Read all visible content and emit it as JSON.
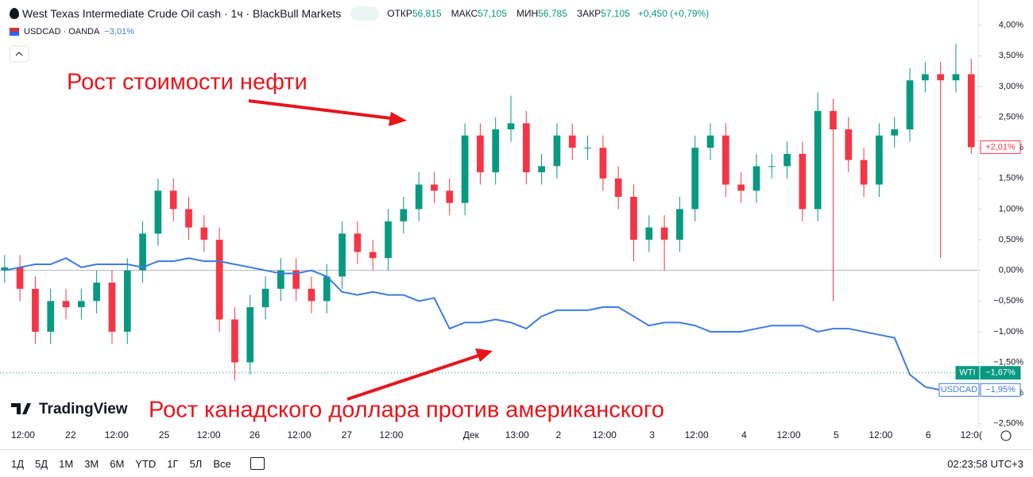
{
  "chart_data": {
    "type": "candlestick",
    "title": "West Texas Intermediate Crude Oil cash · 1ч · BlackBull Markets",
    "stats": [
      {
        "label": "ОТКР",
        "value": "56,815"
      },
      {
        "label": "МАКС",
        "value": "57,105"
      },
      {
        "label": "МИН",
        "value": "56,785"
      },
      {
        "label": "ЗАКР",
        "value": "57,105"
      }
    ],
    "change": "+0,450 (+0,79%)",
    "compare_symbol": "USDCAD · OANDA",
    "compare_change": "−3,01%",
    "annotations": [
      "Рост стоимости нефти",
      "Рост канадского доллара против американского"
    ],
    "logo": "TradingView",
    "up_color": "#089981",
    "down_color": "#f23645",
    "open": [
      0.0,
      0.05,
      -0.3,
      -1.0,
      -0.5,
      -0.6,
      -0.5,
      -0.2,
      -1.0,
      0.0,
      0.6,
      1.3,
      1.0,
      0.7,
      0.5,
      -0.8,
      -1.5,
      -0.6,
      -0.3,
      0.0,
      -0.3,
      -0.5,
      -0.1,
      0.6,
      0.3,
      0.2,
      0.8,
      1.0,
      1.4,
      1.3,
      1.1,
      2.2,
      1.6,
      2.3,
      2.4,
      1.6,
      1.7,
      2.2,
      2.0,
      2.0,
      1.5,
      1.2,
      0.5,
      0.7,
      0.5,
      1.0,
      2.0,
      2.2,
      1.4,
      1.3,
      1.7,
      1.7,
      1.9,
      1.0,
      2.6,
      2.3,
      1.8,
      1.4,
      2.2,
      2.3,
      3.1,
      3.2,
      3.1,
      3.2
    ],
    "high": [
      0.25,
      0.25,
      -0.1,
      -0.3,
      -0.3,
      -0.3,
      0.0,
      0.0,
      0.2,
      0.8,
      1.5,
      1.5,
      1.2,
      0.9,
      0.7,
      -0.6,
      -0.4,
      -0.1,
      0.2,
      0.2,
      -0.1,
      0.1,
      0.8,
      0.8,
      0.5,
      1.0,
      1.2,
      1.6,
      1.6,
      1.5,
      2.4,
      2.4,
      2.5,
      2.85,
      2.6,
      1.9,
      2.4,
      2.4,
      2.2,
      2.2,
      1.7,
      1.4,
      0.9,
      0.9,
      1.2,
      2.2,
      2.4,
      2.4,
      1.6,
      1.9,
      1.9,
      2.1,
      2.1,
      2.9,
      2.8,
      2.5,
      2.0,
      2.4,
      2.5,
      3.3,
      3.4,
      3.4,
      3.7,
      3.45
    ],
    "low": [
      -0.2,
      -0.5,
      -1.2,
      -1.2,
      -0.8,
      -0.8,
      -0.7,
      -1.2,
      -1.2,
      -0.2,
      0.4,
      0.8,
      0.5,
      0.3,
      -1.0,
      -1.8,
      -1.7,
      -0.8,
      -0.5,
      -0.5,
      -0.7,
      -0.7,
      -0.3,
      0.1,
      0.0,
      0.0,
      0.6,
      0.8,
      1.1,
      0.9,
      0.9,
      1.4,
      1.4,
      2.1,
      1.4,
      1.4,
      1.5,
      1.8,
      1.8,
      1.3,
      1.0,
      0.15,
      0.3,
      0.0,
      0.3,
      0.8,
      1.8,
      1.2,
      1.1,
      1.1,
      1.5,
      1.5,
      0.8,
      0.8,
      -0.5,
      1.6,
      1.2,
      1.2,
      2.0,
      2.1,
      2.9,
      0.2,
      2.9,
      1.9
    ],
    "close": [
      0.05,
      -0.3,
      -1.0,
      -0.5,
      -0.6,
      -0.5,
      -0.2,
      -1.0,
      0.0,
      0.6,
      1.3,
      1.0,
      0.7,
      0.5,
      -0.8,
      -1.5,
      -0.6,
      -0.3,
      0.0,
      -0.3,
      -0.5,
      -0.1,
      0.6,
      0.3,
      0.2,
      0.8,
      1.0,
      1.4,
      1.3,
      1.1,
      2.2,
      1.6,
      2.3,
      2.4,
      1.6,
      1.7,
      2.2,
      2.0,
      2.0,
      1.5,
      1.2,
      0.5,
      0.7,
      0.5,
      1.0,
      2.0,
      2.2,
      1.4,
      1.3,
      1.7,
      1.7,
      1.9,
      1.0,
      2.6,
      2.3,
      1.8,
      1.4,
      2.2,
      2.3,
      3.1,
      3.2,
      3.1,
      3.2,
      2.01
    ],
    "series": [
      {
        "name": "USDCAD",
        "color": "#3d7be0",
        "values": [
          0.0,
          0.05,
          0.1,
          0.1,
          0.2,
          0.05,
          0.1,
          0.1,
          0.1,
          0.05,
          0.15,
          0.15,
          0.2,
          0.15,
          0.15,
          0.1,
          0.05,
          0.0,
          -0.05,
          -0.05,
          0.0,
          -0.1,
          -0.35,
          -0.4,
          -0.35,
          -0.4,
          -0.4,
          -0.5,
          -0.45,
          -0.95,
          -0.85,
          -0.85,
          -0.8,
          -0.85,
          -0.95,
          -0.75,
          -0.65,
          -0.65,
          -0.65,
          -0.6,
          -0.6,
          -0.75,
          -0.9,
          -0.85,
          -0.85,
          -0.9,
          -1.0,
          -1.0,
          -1.0,
          -0.95,
          -0.9,
          -0.9,
          -0.9,
          -1.0,
          -0.95,
          -0.95,
          -1.0,
          -1.05,
          -1.1,
          -1.7,
          -1.9,
          -1.95,
          -1.95,
          -1.95
        ]
      }
    ],
    "price_labels": [
      {
        "text": "+2,01%",
        "value": 2.01,
        "color": "#f23645",
        "style": "outline"
      },
      {
        "name": "WTI",
        "text": "−1,67%",
        "value": -1.67,
        "color": "#089981",
        "style": "filled"
      },
      {
        "name": "USDCAD",
        "text": "−1,95%",
        "value": -1.95,
        "color": "#3d7be0",
        "style": "outline"
      }
    ],
    "xlim": [
      -0.3,
      63.4
    ],
    "xticks": [
      {
        "value": 1.2,
        "label": "12:00"
      },
      {
        "value": 4.3,
        "label": "22"
      },
      {
        "value": 7.3,
        "label": "12:00"
      },
      {
        "value": 10.4,
        "label": "25"
      },
      {
        "value": 13.3,
        "label": "12:00"
      },
      {
        "value": 16.3,
        "label": "26"
      },
      {
        "value": 19.2,
        "label": "12:00"
      },
      {
        "value": 22.3,
        "label": "27"
      },
      {
        "value": 25.2,
        "label": "12:00"
      },
      {
        "value": 30.4,
        "label": "Дек"
      },
      {
        "value": 33.4,
        "label": "13:00"
      },
      {
        "value": 36.1,
        "label": "2"
      },
      {
        "value": 39.1,
        "label": "12:00"
      },
      {
        "value": 42.2,
        "label": "3"
      },
      {
        "value": 45.1,
        "label": "12:00"
      },
      {
        "value": 48.2,
        "label": "4"
      },
      {
        "value": 51.1,
        "label": "12:00"
      },
      {
        "value": 54.2,
        "label": "5"
      },
      {
        "value": 57.1,
        "label": "12:00"
      },
      {
        "value": 60.2,
        "label": "6"
      },
      {
        "value": 63.0,
        "label": "12:0("
      }
    ],
    "ylim": [
      -2.58,
      4.41
    ],
    "yticks": [
      {
        "value": 4.0,
        "label": "4,00%"
      },
      {
        "value": 3.5,
        "label": "3,50%"
      },
      {
        "value": 3.0,
        "label": "3,00%"
      },
      {
        "value": 2.5,
        "label": "2,50%"
      },
      {
        "value": 2.0,
        "label": "2,00%"
      },
      {
        "value": 1.5,
        "label": "1,50%"
      },
      {
        "value": 1.0,
        "label": "1,00%"
      },
      {
        "value": 0.5,
        "label": "0,50%"
      },
      {
        "value": 0.0,
        "label": "0,00%"
      },
      {
        "value": -0.5,
        "label": "−0,50%"
      },
      {
        "value": -1.0,
        "label": "−1,00%"
      },
      {
        "value": -1.5,
        "label": "−1,50%"
      },
      {
        "value": -2.0,
        "label": "−2,00%"
      },
      {
        "value": -2.5,
        "label": "−2,50%"
      }
    ],
    "baseline": 0.0,
    "ranges": [
      "1Д",
      "5Д",
      "1М",
      "3М",
      "6М",
      "YTD",
      "1Г",
      "5Л",
      "Все"
    ],
    "clock": "02:23:58 UTC+3"
  }
}
